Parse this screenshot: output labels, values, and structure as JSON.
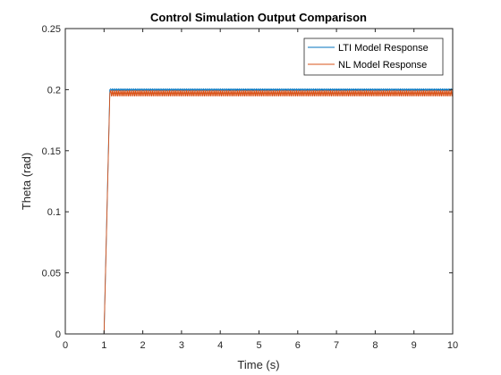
{
  "chart_data": {
    "type": "line",
    "title": "Control Simulation Output Comparison",
    "xlabel": "Time (s)",
    "ylabel": "Theta (rad)",
    "xlim": [
      0,
      10
    ],
    "ylim": [
      0,
      0.25
    ],
    "xticks": [
      0,
      1,
      2,
      3,
      4,
      5,
      6,
      7,
      8,
      9,
      10
    ],
    "yticks": [
      0,
      0.05,
      0.1,
      0.15,
      0.2,
      0.25
    ],
    "ytick_labels": [
      "0",
      "0.05",
      "0.1",
      "0.15",
      "0.2",
      "0.25"
    ],
    "grid": false,
    "legend_position": "top-right",
    "series": [
      {
        "name": "LTI Model Response",
        "color": "#0072BD",
        "step_time": 1.0,
        "rise_end": 1.15,
        "initial": 0,
        "final": 0.2,
        "ripple": 0.0006
      },
      {
        "name": "NL Model Response",
        "color": "#D95319",
        "step_time": 1.0,
        "rise_end": 1.15,
        "initial": 0,
        "final": 0.197,
        "ripple": 0.0025
      }
    ]
  }
}
